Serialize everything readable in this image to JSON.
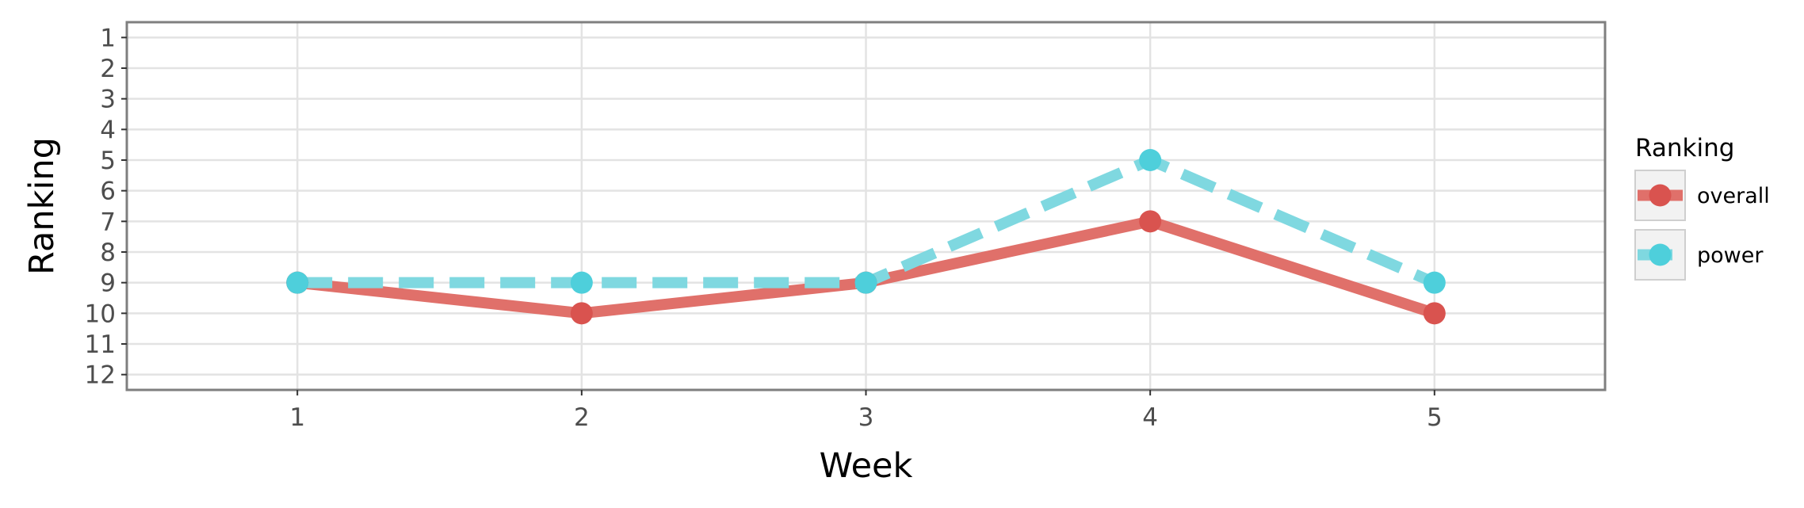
{
  "chart_data": {
    "type": "line",
    "xlabel": "Week",
    "ylabel": "Ranking",
    "x": [
      1,
      2,
      3,
      4,
      5
    ],
    "xlim": [
      0.4,
      5.6
    ],
    "ylim": [
      12.5,
      0.5
    ],
    "y_reversed": true,
    "xticks": [
      "1",
      "2",
      "3",
      "4",
      "5"
    ],
    "yticks": [
      "1",
      "2",
      "3",
      "4",
      "5",
      "6",
      "7",
      "8",
      "9",
      "10",
      "11",
      "12"
    ],
    "grid": true,
    "legend": {
      "title": "Ranking",
      "placement": "right",
      "entries": [
        "overall",
        "power"
      ]
    },
    "series": [
      {
        "name": "overall",
        "values": [
          9,
          10,
          9,
          7,
          10
        ],
        "color": "#e0706a",
        "point_color": "#d9534f",
        "line_style": "solid"
      },
      {
        "name": "power",
        "values": [
          9,
          9,
          9,
          5,
          9
        ],
        "color": "#7fd8e0",
        "point_color": "#4ecfdb",
        "line_style": "dashed"
      }
    ],
    "colors": {
      "grid": "#e3e3e3",
      "frame": "#7f7f7f",
      "tick": "#333333"
    }
  }
}
